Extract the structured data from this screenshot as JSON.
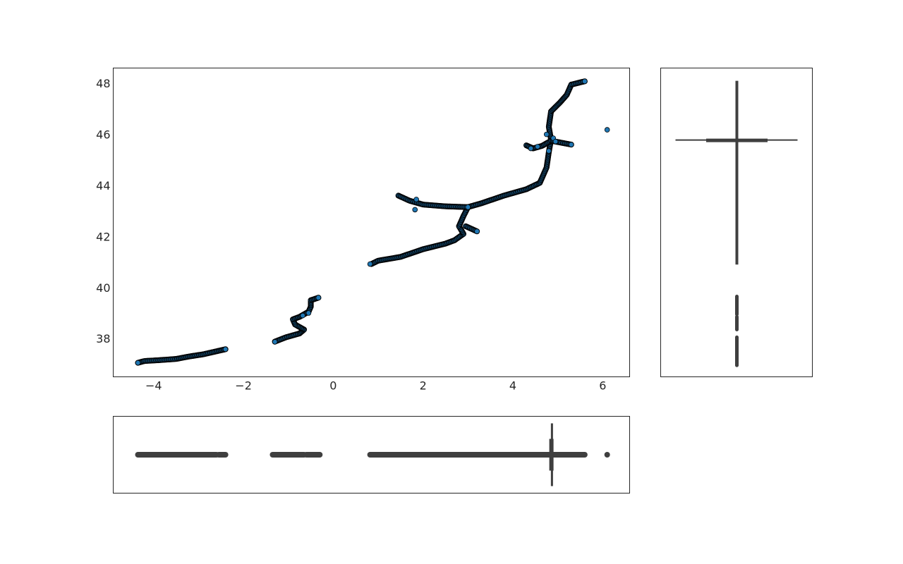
{
  "chart_data": [
    {
      "type": "scatter",
      "xlim": [
        -4.9,
        6.6
      ],
      "ylim": [
        36.5,
        48.6
      ],
      "xticks": [
        -4,
        -2,
        0,
        2,
        4,
        6
      ],
      "yticks": [
        38,
        40,
        42,
        44,
        46,
        48
      ],
      "xtick_labels": [
        "−4",
        "−2",
        "0",
        "2",
        "4",
        "6"
      ],
      "ytick_labels": [
        "38",
        "40",
        "42",
        "44",
        "46",
        "48"
      ],
      "grid": false,
      "point_color": "#1f77b4",
      "edge_color": "#000000",
      "tracks": [
        [
          [
            -4.35,
            37.05
          ],
          [
            -4.2,
            37.12
          ],
          [
            -3.9,
            37.15
          ],
          [
            -3.5,
            37.2
          ],
          [
            -3.2,
            37.3
          ],
          [
            -2.9,
            37.38
          ],
          [
            -2.6,
            37.5
          ],
          [
            -2.4,
            37.58
          ]
        ],
        [
          [
            -1.3,
            37.88
          ],
          [
            -1.05,
            38.05
          ],
          [
            -0.75,
            38.2
          ],
          [
            -0.65,
            38.35
          ],
          [
            -0.85,
            38.55
          ],
          [
            -0.9,
            38.75
          ],
          [
            -0.75,
            38.85
          ],
          [
            -0.55,
            39.05
          ],
          [
            -0.5,
            39.25
          ],
          [
            -0.5,
            39.5
          ],
          [
            -0.33,
            39.6
          ]
        ],
        [
          [
            0.85,
            40.92
          ],
          [
            1.0,
            41.05
          ],
          [
            1.5,
            41.2
          ],
          [
            2.0,
            41.5
          ],
          [
            2.5,
            41.72
          ],
          [
            2.7,
            41.85
          ],
          [
            2.9,
            42.1
          ],
          [
            2.8,
            42.4
          ],
          [
            2.9,
            42.8
          ],
          [
            3.0,
            43.15
          ],
          [
            3.3,
            43.3
          ],
          [
            3.8,
            43.6
          ],
          [
            4.3,
            43.85
          ],
          [
            4.6,
            44.1
          ],
          [
            4.75,
            44.7
          ],
          [
            4.8,
            45.3
          ],
          [
            4.85,
            45.8
          ],
          [
            4.8,
            46.3
          ],
          [
            4.85,
            46.9
          ],
          [
            5.05,
            47.25
          ],
          [
            5.2,
            47.55
          ],
          [
            5.3,
            47.95
          ],
          [
            5.6,
            48.08
          ]
        ],
        [
          [
            1.45,
            43.6
          ],
          [
            1.7,
            43.4
          ],
          [
            2.0,
            43.25
          ],
          [
            2.5,
            43.18
          ],
          [
            3.0,
            43.15
          ]
        ],
        [
          [
            2.95,
            42.4
          ],
          [
            3.2,
            42.2
          ]
        ],
        [
          [
            4.3,
            45.57
          ],
          [
            4.45,
            45.45
          ],
          [
            4.65,
            45.55
          ],
          [
            4.85,
            45.75
          ],
          [
            5.0,
            45.7
          ],
          [
            5.3,
            45.6
          ]
        ]
      ],
      "outliers": [
        [
          6.1,
          46.18
        ],
        [
          1.85,
          43.45
        ],
        [
          1.82,
          43.05
        ],
        [
          -0.55,
          39.0
        ],
        [
          -0.68,
          38.9
        ],
        [
          -2.4,
          37.58
        ],
        [
          4.75,
          46.0
        ],
        [
          4.9,
          45.85
        ],
        [
          4.95,
          45.72
        ],
        [
          4.55,
          45.52
        ],
        [
          4.4,
          45.45
        ],
        [
          4.8,
          45.35
        ],
        [
          5.3,
          45.6
        ],
        [
          0.82,
          40.92
        ],
        [
          -1.3,
          37.87
        ],
        [
          -4.35,
          37.05
        ]
      ]
    },
    {
      "type": "box",
      "orientation": "vertical",
      "variable": "y",
      "median": 45.78,
      "q1": 45.75,
      "q3": 45.82,
      "whisker_low": 40.9,
      "whisker_high": 48.1,
      "outlier_ranges": [
        [
          36.95,
          38.05
        ],
        [
          38.35,
          38.85
        ],
        [
          38.95,
          39.65
        ]
      ],
      "color": "#3f3f3f"
    },
    {
      "type": "box",
      "orientation": "horizontal",
      "variable": "x",
      "median": 4.87,
      "q1": 4.85,
      "q3": 4.9,
      "whisker_low": 0.82,
      "whisker_high": 5.6,
      "outlier_ranges": [
        [
          -4.35,
          -2.6
        ],
        [
          -2.55,
          -2.4
        ],
        [
          -1.35,
          -0.65
        ],
        [
          -0.6,
          -0.3
        ],
        [
          6.1,
          6.1
        ]
      ],
      "color": "#3f3f3f"
    }
  ]
}
